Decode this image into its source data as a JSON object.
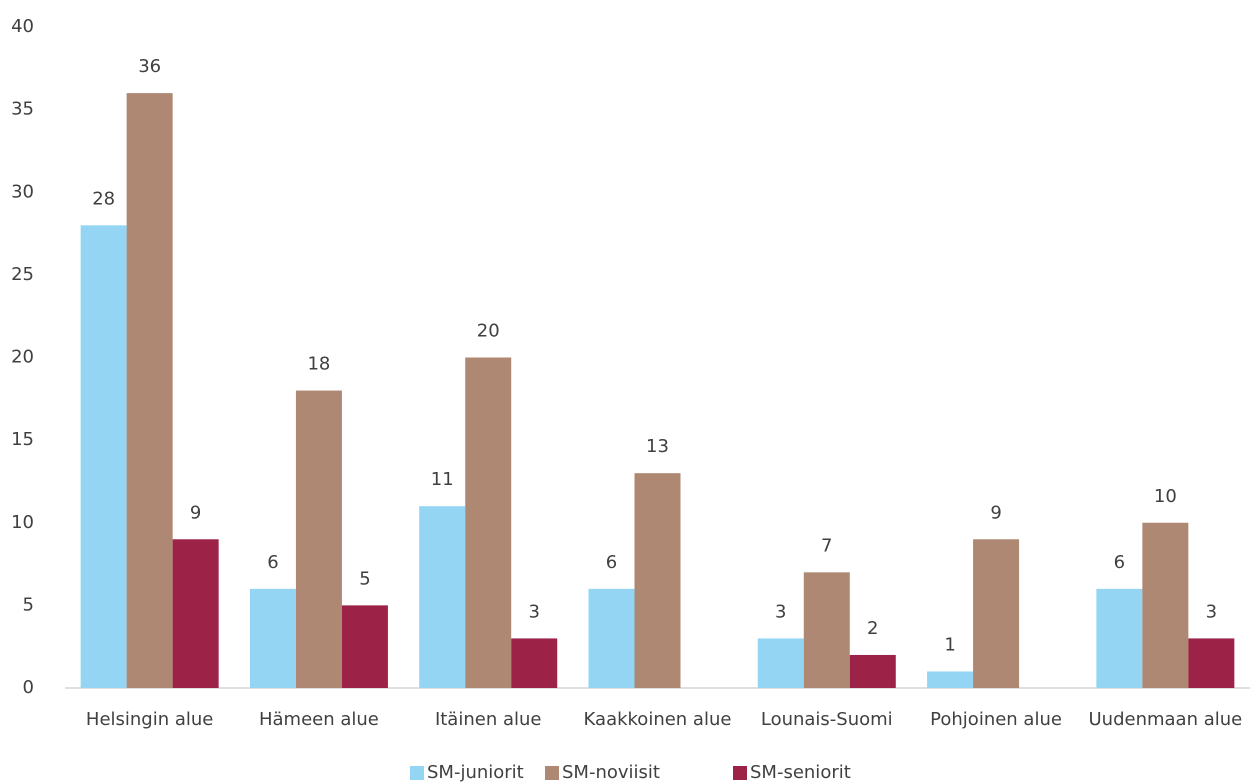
{
  "chart_data": {
    "type": "bar",
    "categories": [
      "Helsingin alue",
      "Hämeen alue",
      "Itäinen alue",
      "Kaakkoinen alue",
      "Lounais-Suomi",
      "Pohjoinen alue",
      "Uudenmaan alue"
    ],
    "series": [
      {
        "name": "SM-juniorit",
        "color": "#93d5f3",
        "values": [
          28,
          6,
          11,
          6,
          3,
          1,
          6
        ]
      },
      {
        "name": "SM-noviisit",
        "color": "#ae8872",
        "values": [
          36,
          18,
          20,
          13,
          7,
          9,
          10
        ]
      },
      {
        "name": "SM-seniorit",
        "color": "#9d2247",
        "values": [
          9,
          5,
          3,
          null,
          2,
          null,
          3
        ]
      }
    ],
    "ylim": [
      0,
      40
    ],
    "yticks": [
      0,
      5,
      10,
      15,
      20,
      25,
      30,
      35,
      40
    ],
    "grid": false,
    "legend": "bottom"
  }
}
